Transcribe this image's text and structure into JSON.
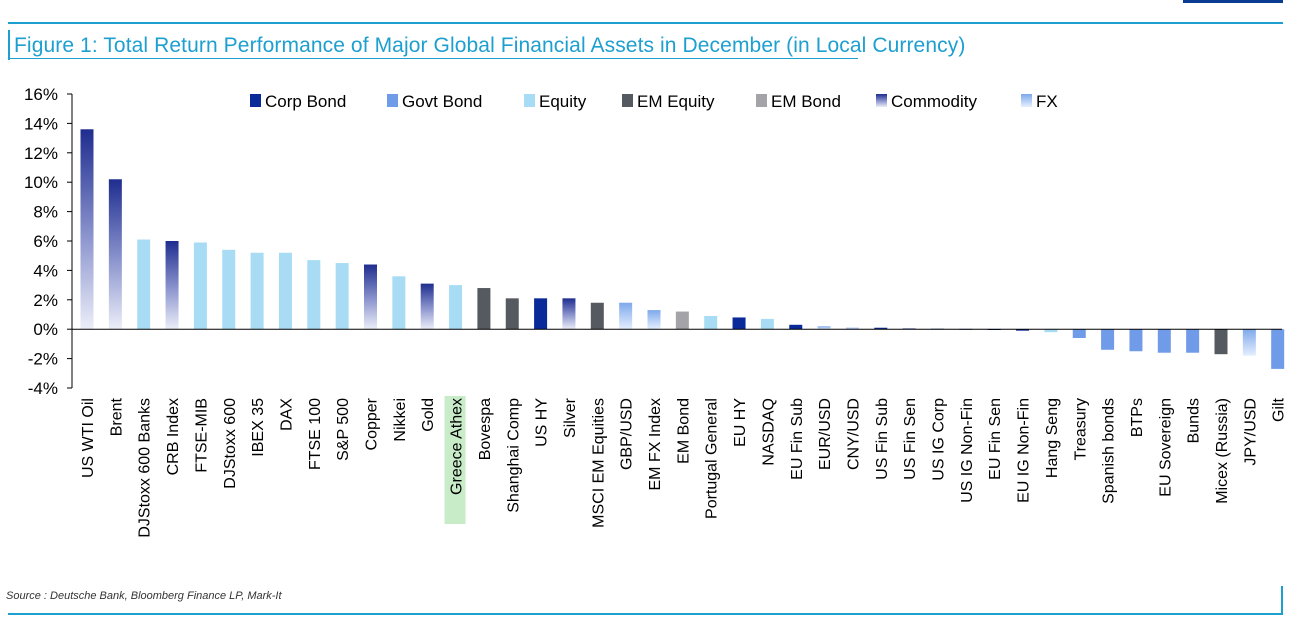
{
  "title": "Figure 1: Total Return Performance of Major Global Financial Assets in December (in Local Currency)",
  "source": "Source : Deutsche Bank, Bloomberg Finance LP, Mark-It",
  "colors": {
    "Corp Bond": "#0a2a9a",
    "Govt Bond": "#6f9be8",
    "Equity": "#a8dcf5",
    "EM Equity": "#555a60",
    "EM Bond": "#a3a3a8",
    "Commodity": "#1f2d8f",
    "FX": "#7ea9ea",
    "highlight": "#c8ebc8",
    "axis": "#000000"
  },
  "chart_data": {
    "type": "bar",
    "ylim": [
      -4,
      16
    ],
    "yticks": [
      16,
      14,
      12,
      10,
      8,
      6,
      4,
      2,
      0,
      -2,
      -4
    ],
    "ytick_labels": [
      "16%",
      "14%",
      "12%",
      "10%",
      "8%",
      "6%",
      "4%",
      "2%",
      "0%",
      "-2%",
      "-4%"
    ],
    "legend": [
      "Corp Bond",
      "Govt Bond",
      "Equity",
      "EM Equity",
      "EM Bond",
      "Commodity",
      "FX"
    ],
    "highlighted_category": "Greece Athex",
    "bars": [
      {
        "label": "US WTI Oil",
        "value": 13.6,
        "category": "Commodity"
      },
      {
        "label": "Brent",
        "value": 10.2,
        "category": "Commodity"
      },
      {
        "label": "DJStoxx 600 Banks",
        "value": 6.1,
        "category": "Equity"
      },
      {
        "label": "CRB Index",
        "value": 6.0,
        "category": "Commodity"
      },
      {
        "label": "FTSE-MIB",
        "value": 5.9,
        "category": "Equity"
      },
      {
        "label": "DJStoxx 600",
        "value": 5.4,
        "category": "Equity"
      },
      {
        "label": "IBEX 35",
        "value": 5.2,
        "category": "Equity"
      },
      {
        "label": "DAX",
        "value": 5.2,
        "category": "Equity"
      },
      {
        "label": "FTSE 100",
        "value": 4.7,
        "category": "Equity"
      },
      {
        "label": "S&P 500",
        "value": 4.5,
        "category": "Equity"
      },
      {
        "label": "Copper",
        "value": 4.4,
        "category": "Commodity"
      },
      {
        "label": "Nikkei",
        "value": 3.6,
        "category": "Equity"
      },
      {
        "label": "Gold",
        "value": 3.1,
        "category": "Commodity"
      },
      {
        "label": "Greece Athex",
        "value": 3.0,
        "category": "Equity"
      },
      {
        "label": "Bovespa",
        "value": 2.8,
        "category": "EM Equity"
      },
      {
        "label": "Shanghai Comp",
        "value": 2.1,
        "category": "EM Equity"
      },
      {
        "label": "US HY",
        "value": 2.1,
        "category": "Corp Bond"
      },
      {
        "label": "Silver",
        "value": 2.1,
        "category": "Commodity"
      },
      {
        "label": "MSCI EM Equities",
        "value": 1.8,
        "category": "EM Equity"
      },
      {
        "label": "GBP/USD",
        "value": 1.8,
        "category": "FX"
      },
      {
        "label": "EM FX Index",
        "value": 1.3,
        "category": "FX"
      },
      {
        "label": "EM Bond",
        "value": 1.2,
        "category": "EM Bond"
      },
      {
        "label": "Portugal General",
        "value": 0.9,
        "category": "Equity"
      },
      {
        "label": "EU HY",
        "value": 0.8,
        "category": "Corp Bond"
      },
      {
        "label": "NASDAQ",
        "value": 0.7,
        "category": "Equity"
      },
      {
        "label": "EU Fin Sub",
        "value": 0.3,
        "category": "Corp Bond"
      },
      {
        "label": "EUR/USD",
        "value": 0.2,
        "category": "FX"
      },
      {
        "label": "CNY/USD",
        "value": 0.1,
        "category": "FX"
      },
      {
        "label": "US Fin Sub",
        "value": 0.1,
        "category": "Corp Bond"
      },
      {
        "label": "US Fin Sen",
        "value": 0.05,
        "category": "Corp Bond"
      },
      {
        "label": "US IG Corp",
        "value": 0.03,
        "category": "Corp Bond"
      },
      {
        "label": "US IG Non-Fin",
        "value": 0.02,
        "category": "Corp Bond"
      },
      {
        "label": "EU Fin Sen",
        "value": -0.05,
        "category": "Corp Bond"
      },
      {
        "label": "EU IG Non-Fin",
        "value": -0.1,
        "category": "Corp Bond"
      },
      {
        "label": "Hang Seng",
        "value": -0.2,
        "category": "Equity"
      },
      {
        "label": "Treasury",
        "value": -0.6,
        "category": "Govt Bond"
      },
      {
        "label": "Spanish bonds",
        "value": -1.4,
        "category": "Govt Bond"
      },
      {
        "label": "BTPs",
        "value": -1.5,
        "category": "Govt Bond"
      },
      {
        "label": "EU Sovereign",
        "value": -1.6,
        "category": "Govt Bond"
      },
      {
        "label": "Bunds",
        "value": -1.6,
        "category": "Govt Bond"
      },
      {
        "label": "Micex (Russia)",
        "value": -1.7,
        "category": "EM Equity"
      },
      {
        "label": "JPY/USD",
        "value": -1.8,
        "category": "FX"
      },
      {
        "label": "Gilt",
        "value": -2.7,
        "category": "Govt Bond"
      }
    ]
  }
}
